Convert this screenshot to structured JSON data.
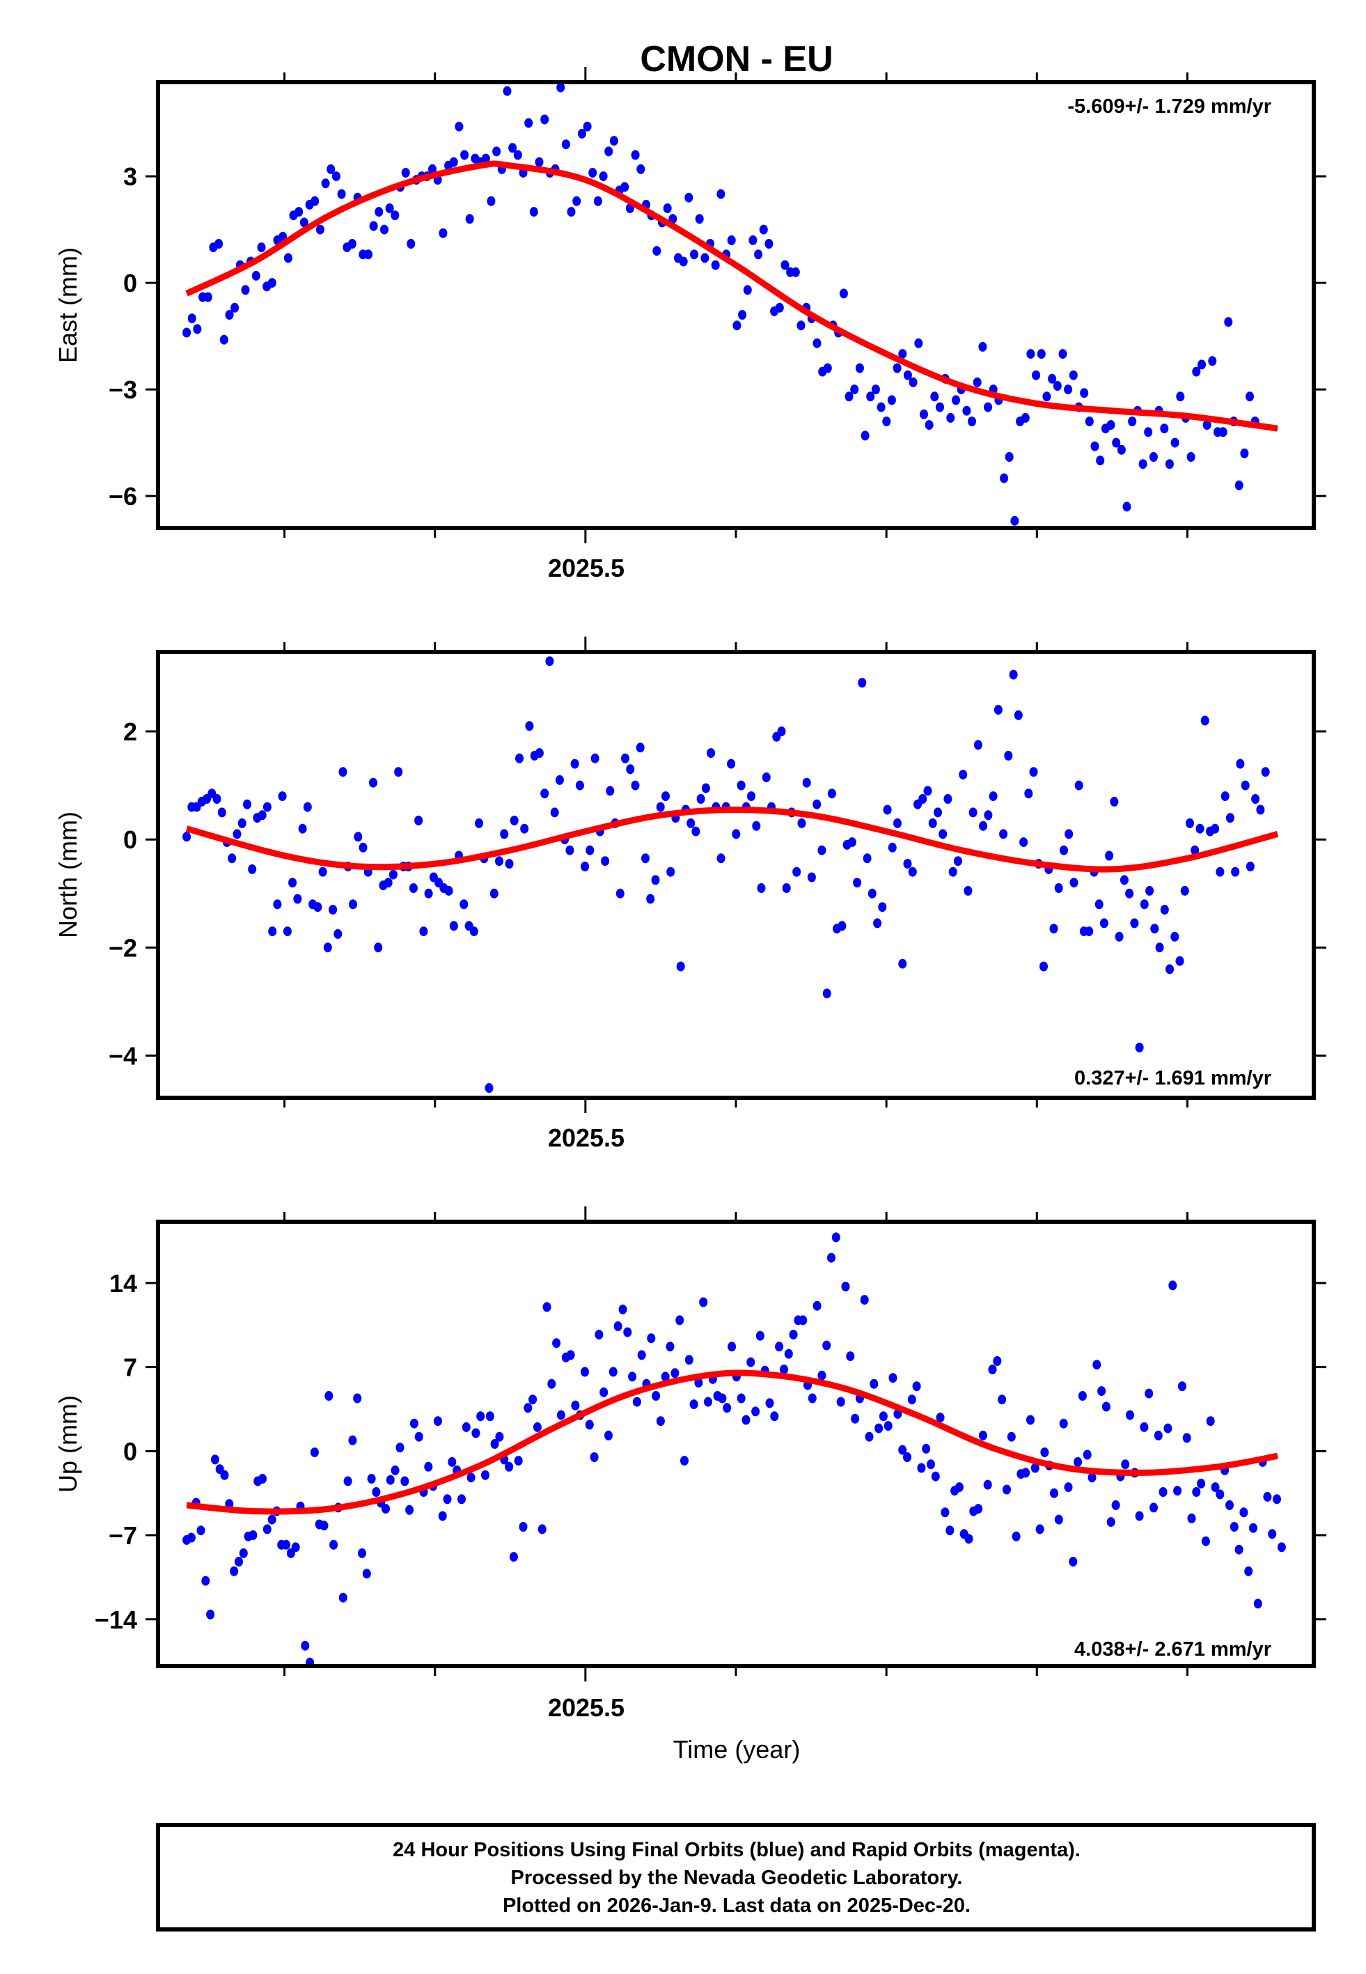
{
  "chart_data": {
    "type": "scatter",
    "title": "CMON - EU",
    "xlabel": "Time (year)",
    "xlim": [
      2025.216,
      2025.984
    ],
    "x_major_ticks": [
      2025.5
    ],
    "x_major_tick_labels": [
      "2025.5"
    ],
    "x_minor_ticks": [
      2025.3,
      2025.4,
      2025.5,
      2025.6,
      2025.7,
      2025.8,
      2025.9
    ],
    "x_start": 2025.235,
    "x_step": 0.0052,
    "colors": {
      "final_orbits": "#0000ff",
      "model_fit": "#ff0000",
      "frame": "#000000"
    },
    "panels": [
      {
        "name": "east",
        "ylabel": "East (mm)",
        "ylim": [
          -6.9,
          5.65
        ],
        "yticks": [
          3,
          0,
          -3,
          -6
        ],
        "ytick_labels": [
          "3",
          "0",
          "−3",
          "−6"
        ],
        "rate_label": "-5.609+/- 1.729 mm/yr",
        "rate_position": "top-right",
        "fit": {
          "x": [
            2025.235,
            2025.28,
            2025.33,
            2025.38,
            2025.43,
            2025.45,
            2025.5,
            2025.55,
            2025.6,
            2025.65,
            2025.7,
            2025.75,
            2025.8,
            2025.85,
            2025.9,
            2025.96
          ],
          "y": [
            -0.3,
            0.6,
            1.9,
            2.8,
            3.3,
            3.3,
            2.9,
            1.8,
            0.5,
            -0.9,
            -2.0,
            -2.9,
            -3.4,
            -3.6,
            -3.75,
            -4.1
          ]
        },
        "points": [
          -1.4,
          -1.0,
          -1.3,
          -0.4,
          -0.4,
          1.0,
          1.1,
          -1.6,
          -0.9,
          -0.7,
          0.5,
          -0.2,
          0.6,
          0.2,
          1.0,
          -0.1,
          0.0,
          1.2,
          1.3,
          0.7,
          1.9,
          2.0,
          1.7,
          2.2,
          2.3,
          1.5,
          2.8,
          3.2,
          3.0,
          2.5,
          1.0,
          1.1,
          2.4,
          0.8,
          0.8,
          1.6,
          2.0,
          1.5,
          2.1,
          1.9,
          2.7,
          3.1,
          1.1,
          2.9,
          3.0,
          3.0,
          3.2,
          2.9,
          1.4,
          3.3,
          3.4,
          4.4,
          3.6,
          1.8,
          3.5,
          3.4,
          3.5,
          2.3,
          3.7,
          3.2,
          5.4,
          3.8,
          3.6,
          3.1,
          4.5,
          2.0,
          3.4,
          4.6,
          3.1,
          3.2,
          5.5,
          3.9,
          2.0,
          2.3,
          4.2,
          4.4,
          3.1,
          2.3,
          3.0,
          3.7,
          4.0,
          2.6,
          2.7,
          2.1,
          3.6,
          3.2,
          2.2,
          1.9,
          0.9,
          1.7,
          2.1,
          1.8,
          0.7,
          0.6,
          2.4,
          0.8,
          1.8,
          0.7,
          1.1,
          0.5,
          2.5,
          0.8,
          1.2,
          -1.2,
          -0.9,
          -0.2,
          1.2,
          0.8,
          1.5,
          1.1,
          -0.8,
          -0.7,
          0.5,
          0.3,
          0.3,
          -1.2,
          -0.7,
          -1.0,
          -1.7,
          -2.5,
          -2.4,
          -1.2,
          -1.4,
          -0.3,
          -3.2,
          -3.0,
          -2.4,
          -4.3,
          -3.2,
          -3.0,
          -3.5,
          -3.9,
          -3.3,
          -2.4,
          -2.0,
          -2.6,
          -2.8,
          -1.7,
          -3.7,
          -4.0,
          -3.2,
          -3.5,
          -2.7,
          -3.8,
          -3.3,
          -3.0,
          -3.6,
          -3.9,
          -2.8,
          -1.8,
          -3.5,
          -3.0,
          -3.3,
          -5.5,
          -4.9,
          -6.7,
          -3.9,
          -3.8,
          -2.0,
          -2.6,
          -2.0,
          -3.2,
          -2.7,
          -2.9,
          -2.0,
          -3.0,
          -2.6,
          -3.5,
          -3.1,
          -3.9,
          -4.6,
          -5.0,
          -4.1,
          -4.0,
          -4.5,
          -4.7,
          -6.3,
          -3.9,
          -3.6,
          -5.1,
          -4.2,
          -4.9,
          -3.6,
          -4.1,
          -5.1,
          -4.5,
          -3.2,
          -3.8,
          -4.9,
          -2.5,
          -2.3,
          -4.0,
          -2.2,
          -4.2,
          -4.2,
          -1.1,
          -3.9,
          -5.7,
          -4.8,
          -3.2,
          -3.9
        ],
        "points_x_step": 0.00355
      },
      {
        "name": "north",
        "ylabel": "North (mm)",
        "ylim": [
          -4.78,
          3.47
        ],
        "yticks": [
          2,
          0,
          -2,
          -4
        ],
        "ytick_labels": [
          "2",
          "0",
          "−2",
          "−4"
        ],
        "rate_label": "0.327+/- 1.691 mm/yr",
        "rate_position": "bottom-right",
        "fit": {
          "x": [
            2025.235,
            2025.3,
            2025.35,
            2025.4,
            2025.45,
            2025.5,
            2025.55,
            2025.6,
            2025.65,
            2025.7,
            2025.75,
            2025.8,
            2025.85,
            2025.9,
            2025.96
          ],
          "y": [
            0.2,
            -0.3,
            -0.5,
            -0.45,
            -0.2,
            0.15,
            0.45,
            0.55,
            0.45,
            0.15,
            -0.2,
            -0.45,
            -0.55,
            -0.35,
            0.1
          ]
        },
        "points": [
          0.05,
          0.6,
          0.6,
          0.7,
          0.75,
          0.85,
          0.75,
          0.5,
          -0.05,
          -0.35,
          0.1,
          0.3,
          0.65,
          -0.55,
          0.4,
          0.45,
          0.6,
          -1.7,
          -1.2,
          0.8,
          -1.7,
          -0.8,
          -1.1,
          0.2,
          0.6,
          -1.2,
          -1.25,
          -0.6,
          -2.0,
          -1.3,
          -1.75,
          1.25,
          -0.5,
          -1.2,
          0.05,
          -0.15,
          -0.6,
          1.05,
          -2.0,
          -0.85,
          -0.8,
          -0.65,
          1.25,
          -0.5,
          -0.5,
          -0.9,
          0.35,
          -1.7,
          -1.0,
          -0.7,
          -0.8,
          -0.9,
          -0.95,
          -1.6,
          -0.3,
          -1.2,
          -1.6,
          -1.7,
          0.3,
          -0.35,
          -4.6,
          -1.0,
          -0.4,
          0.1,
          -0.45,
          0.35,
          1.5,
          0.2,
          2.1,
          1.55,
          1.6,
          0.85,
          3.3,
          0.5,
          1.1,
          0.0,
          -0.2,
          1.4,
          1.0,
          -0.5,
          -0.2,
          1.5,
          0.15,
          -0.4,
          0.9,
          0.3,
          -1.0,
          1.5,
          1.3,
          1.0,
          1.7,
          -0.35,
          -1.1,
          -0.75,
          0.6,
          0.8,
          -0.6,
          0.4,
          -2.35,
          0.55,
          0.3,
          0.15,
          0.75,
          0.95,
          1.6,
          0.6,
          -0.35,
          0.6,
          1.4,
          0.1,
          1.0,
          0.6,
          0.8,
          0.25,
          -0.9,
          1.15,
          0.6,
          1.9,
          2.0,
          -0.9,
          0.5,
          -0.6,
          0.3,
          1.05,
          -0.7,
          0.65,
          -0.2,
          -2.85,
          0.85,
          -1.65,
          -1.6,
          -0.1,
          -0.05,
          -0.8,
          2.9,
          -0.35,
          -1.0,
          -1.55,
          -1.25,
          0.55,
          -0.15,
          0.3,
          -2.3,
          -0.45,
          -0.6,
          0.65,
          0.75,
          0.9,
          0.3,
          0.5,
          0.1,
          0.75,
          -0.6,
          -0.4,
          1.2,
          -0.95,
          0.5,
          1.75,
          0.25,
          0.45,
          0.8,
          2.4,
          0.1,
          1.55,
          3.05,
          2.3,
          -0.05,
          0.85,
          1.25,
          -0.45,
          -2.35,
          -0.55,
          -1.65,
          -0.9,
          -0.2,
          0.1,
          -0.8,
          1.0,
          -1.7,
          -1.7,
          -0.6,
          -1.2,
          -1.55,
          -0.3,
          0.7,
          -1.8,
          -0.75,
          -1.0,
          -1.55,
          -3.85,
          -1.2,
          -0.95,
          -1.65,
          -2.0,
          -1.3,
          -2.4,
          -1.8,
          -2.25,
          -0.95,
          0.3,
          -0.2,
          0.2,
          2.2,
          0.15,
          0.2,
          -0.6,
          0.8,
          0.4,
          -0.6,
          1.4,
          1.0,
          -0.5,
          0.75,
          0.55,
          1.25
        ],
        "points_x_step": 0.00335
      },
      {
        "name": "up",
        "ylabel": "Up (mm)",
        "ylim": [
          -17.9,
          19.1
        ],
        "yticks": [
          14,
          7,
          0,
          -7,
          -14
        ],
        "ytick_labels": [
          "14",
          "7",
          "0",
          "−7",
          "−14"
        ],
        "rate_label": "4.038+/- 2.671 mm/yr",
        "rate_position": "bottom-right",
        "fit": {
          "x": [
            2025.235,
            2025.28,
            2025.33,
            2025.38,
            2025.43,
            2025.48,
            2025.53,
            2025.58,
            2025.62,
            2025.67,
            2025.72,
            2025.77,
            2025.82,
            2025.87,
            2025.92,
            2025.96
          ],
          "y": [
            -4.5,
            -5.0,
            -4.8,
            -3.5,
            -1.2,
            2.0,
            4.8,
            6.3,
            6.4,
            5.3,
            3.0,
            0.3,
            -1.4,
            -1.8,
            -1.3,
            -0.4
          ]
        },
        "points": [
          -7.4,
          -7.2,
          -4.3,
          -6.6,
          -10.8,
          -13.6,
          -0.7,
          -1.5,
          -2.0,
          -4.4,
          -10.0,
          -9.2,
          -8.5,
          -7.1,
          -7.0,
          -2.5,
          -2.3,
          -6.5,
          -5.7,
          -5.0,
          -7.8,
          -7.8,
          -8.5,
          -8.0,
          -4.6,
          -16.2,
          -17.6,
          -0.1,
          -6.1,
          -6.2,
          4.6,
          -7.8,
          -4.7,
          -12.2,
          -2.5,
          0.9,
          4.4,
          -8.5,
          -10.2,
          -2.3,
          -3.4,
          -4.3,
          -4.8,
          -2.4,
          -1.6,
          0.3,
          -2.5,
          -4.9,
          2.3,
          1.2,
          -3.4,
          -1.3,
          -2.9,
          2.5,
          -5.4,
          -4.0,
          -0.9,
          -1.6,
          -4.0,
          2.0,
          -2.2,
          1.5,
          2.9,
          -2.0,
          2.9,
          0.6,
          1.2,
          -0.7,
          -1.3,
          -8.8,
          -0.8,
          -6.3,
          3.6,
          4.3,
          2.0,
          -6.5,
          12.0,
          5.6,
          9.0,
          3.0,
          7.8,
          8.0,
          3.8,
          3.0,
          6.6,
          2.2,
          -0.5,
          9.7,
          4.9,
          1.3,
          6.6,
          10.4,
          11.8,
          9.9,
          6.2,
          4.1,
          8.0,
          5.6,
          9.4,
          4.6,
          2.5,
          6.2,
          8.7,
          6.5,
          10.9,
          -0.8,
          7.6,
          3.9,
          5.7,
          12.4,
          4.1,
          6.0,
          4.6,
          4.4,
          3.6,
          8.7,
          6.2,
          4.4,
          2.6,
          7.4,
          3.3,
          9.6,
          6.7,
          4.0,
          2.9,
          8.7,
          6.8,
          8.1,
          9.7,
          10.9,
          10.9,
          5.5,
          4.4,
          12.1,
          6.3,
          8.8,
          16.1,
          17.8,
          4.1,
          13.7,
          7.9,
          2.7,
          4.4,
          12.6,
          1.2,
          5.6,
          1.9,
          2.9,
          2.1,
          6.1,
          3.1,
          0.1,
          -0.5,
          4.3,
          5.4,
          -1.4,
          0.2,
          -1.1,
          -2.1,
          2.8,
          -5.1,
          -6.6,
          -3.3,
          -3.0,
          -6.9,
          -7.3,
          -5.0,
          -4.8,
          1.3,
          -2.8,
          6.8,
          7.5,
          4.3,
          -3.2,
          1.2,
          -7.1,
          -1.9,
          -1.8,
          2.6,
          -1.4,
          -6.5,
          -0.1,
          -1.2,
          -3.5,
          -5.7,
          2.3,
          -3.0,
          -9.2,
          -0.9,
          4.6,
          -0.3,
          -2.2,
          7.2,
          5.0,
          3.7,
          -5.9,
          -4.5,
          -2.1,
          -1.1,
          3.0,
          -1.8,
          -5.4,
          2.0,
          4.8,
          -4.7,
          1.3,
          -3.4,
          1.9,
          13.8,
          -3.3,
          5.4,
          1.1,
          -5.6,
          -3.4,
          -2.7,
          -7.5,
          2.5,
          -3.0,
          -3.6,
          -1.6,
          -4.5,
          -6.3,
          -8.2,
          -5.1,
          -10.0,
          -6.4,
          -12.7,
          -0.9,
          -3.8,
          -6.9,
          -4.0,
          -8.0
        ],
        "points_x_step": 0.00315
      }
    ]
  },
  "footer": {
    "line1": "24 Hour Positions Using Final Orbits (blue) and Rapid Orbits (magenta).",
    "line2": "Processed by the Nevada Geodetic Laboratory.",
    "line3": "Plotted on 2026-Jan-9. Last data on 2025-Dec-20."
  }
}
